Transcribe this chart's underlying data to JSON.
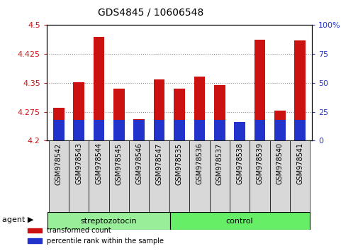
{
  "title": "GDS4845 / 10606548",
  "samples": [
    "GSM978542",
    "GSM978543",
    "GSM978544",
    "GSM978545",
    "GSM978546",
    "GSM978547",
    "GSM978535",
    "GSM978536",
    "GSM978537",
    "GSM978538",
    "GSM978539",
    "GSM978540",
    "GSM978541"
  ],
  "groups": [
    "streptozotocin",
    "streptozotocin",
    "streptozotocin",
    "streptozotocin",
    "streptozotocin",
    "streptozotocin",
    "control",
    "control",
    "control",
    "control",
    "control",
    "control",
    "control"
  ],
  "transformed_count": [
    4.285,
    4.352,
    4.47,
    4.335,
    4.255,
    4.358,
    4.335,
    4.367,
    4.345,
    4.228,
    4.462,
    4.277,
    4.46
  ],
  "percentile_rank": [
    18,
    18,
    18,
    18,
    18,
    18,
    18,
    18,
    18,
    16,
    18,
    18,
    18
  ],
  "ylim_left": [
    4.2,
    4.5
  ],
  "ylim_right": [
    0,
    100
  ],
  "yticks_left": [
    4.2,
    4.275,
    4.35,
    4.425,
    4.5
  ],
  "yticks_right": [
    0,
    25,
    50,
    75,
    100
  ],
  "ytick_labels_right": [
    "0",
    "25",
    "50",
    "75",
    "100%"
  ],
  "ytick_labels_left": [
    "4.2",
    "4.275",
    "4.35",
    "4.425",
    "4.5"
  ],
  "bar_color_red": "#cc1111",
  "bar_color_blue": "#2233cc",
  "group_strep_color": "#99ee99",
  "group_ctrl_color": "#66ee66",
  "base_value": 4.2,
  "grid_color": "#888888",
  "n_strep": 6,
  "n_ctrl": 7,
  "bar_width": 0.55
}
